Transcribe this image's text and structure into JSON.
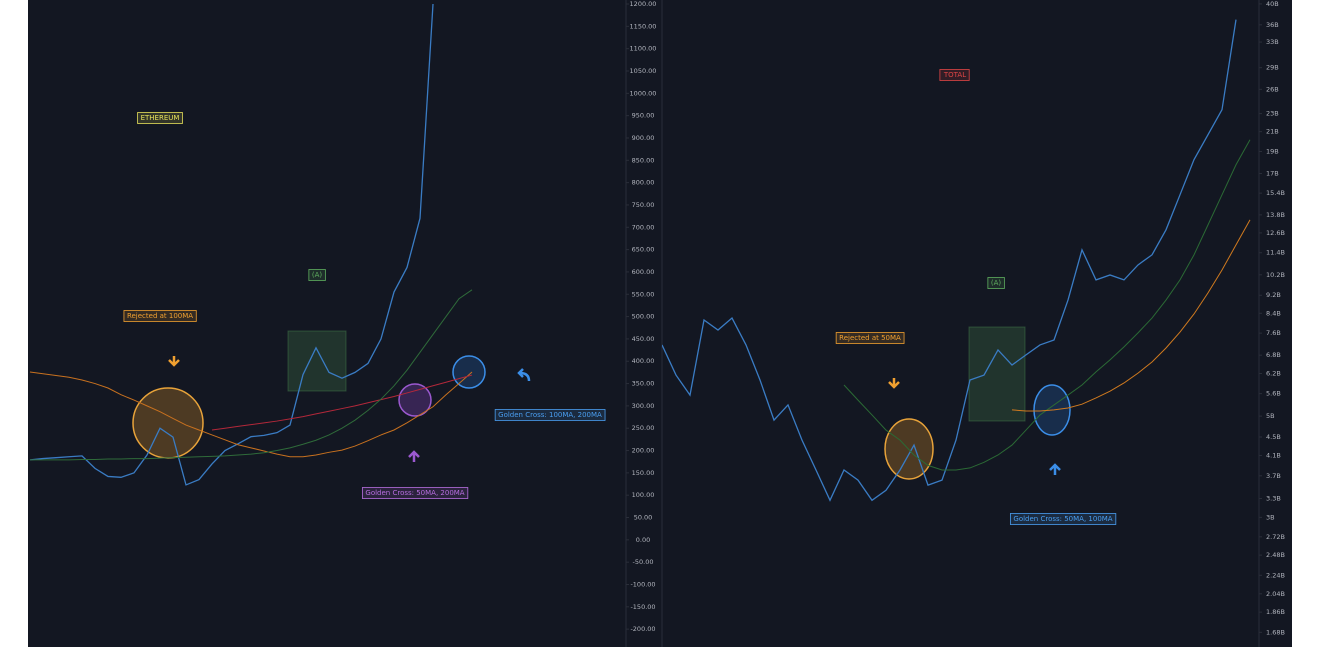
{
  "chart_data": [
    {
      "type": "line",
      "title": "ETHEREUM",
      "annotations": [
        "(A)",
        "Rejected at 100MA",
        "Golden Cross: 50MA, 200MA",
        "Golden Cross: 100MA, 200MA"
      ],
      "ylim": [
        -240,
        1209
      ],
      "yticks": [
        {
          "value": 1200,
          "label": "1200.00"
        },
        {
          "value": 1150,
          "label": "1150.00"
        },
        {
          "value": 1100,
          "label": "1100.00"
        },
        {
          "value": 1050,
          "label": "1050.00"
        },
        {
          "value": 1000,
          "label": "1000.00"
        },
        {
          "value": 950,
          "label": "950.00"
        },
        {
          "value": 900,
          "label": "900.00"
        },
        {
          "value": 850,
          "label": "850.00"
        },
        {
          "value": 800,
          "label": "800.00"
        },
        {
          "value": 750,
          "label": "750.00"
        },
        {
          "value": 700,
          "label": "700.00"
        },
        {
          "value": 650,
          "label": "650.00"
        },
        {
          "value": 600,
          "label": "600.00"
        },
        {
          "value": 550,
          "label": "550.00"
        },
        {
          "value": 500,
          "label": "500.00"
        },
        {
          "value": 450,
          "label": "450.00"
        },
        {
          "value": 400,
          "label": "400.00"
        },
        {
          "value": 350,
          "label": "350.00"
        },
        {
          "value": 300,
          "label": "300.00"
        },
        {
          "value": 250,
          "label": "250.00"
        },
        {
          "value": 200,
          "label": "200.00"
        },
        {
          "value": 150,
          "label": "150.00"
        },
        {
          "value": 100,
          "label": "100.00"
        },
        {
          "value": 50,
          "label": "50.00"
        },
        {
          "value": 0,
          "label": "0.00"
        },
        {
          "value": -50,
          "label": "-50.00"
        },
        {
          "value": -100,
          "label": "-100.00"
        },
        {
          "value": -150,
          "label": "-150.00"
        },
        {
          "value": -200,
          "label": "-200.00"
        }
      ],
      "log_scale": false,
      "grid": false,
      "series": [
        {
          "color": "#3a7cc4",
          "values": [
            179,
            182,
            184,
            186,
            188,
            160,
            142,
            140,
            150,
            190,
            250,
            230,
            123,
            135,
            170,
            200,
            215,
            231,
            234,
            240,
            257,
            370,
            430,
            375,
            362,
            375,
            395,
            450,
            555,
            610,
            720,
            1200,
            null,
            null,
            null
          ]
        },
        {
          "color": "#c8711f",
          "values": [
            376,
            372,
            368,
            364,
            358,
            350,
            340,
            325,
            313,
            300,
            287,
            272,
            257,
            246,
            235,
            224,
            213,
            206,
            199,
            192,
            186,
            186,
            190,
            196,
            201,
            210,
            222,
            235,
            246,
            262,
            280,
            298,
            325,
            350,
            376
          ]
        },
        {
          "color": "#b3283a",
          "values": [
            null,
            null,
            null,
            null,
            null,
            null,
            null,
            null,
            null,
            null,
            null,
            null,
            null,
            null,
            246,
            250,
            254,
            258,
            262,
            266,
            271,
            276,
            282,
            288,
            294,
            300,
            307,
            314,
            321,
            329,
            337,
            345,
            353,
            361,
            369
          ]
        },
        {
          "color": "#2f6b3a",
          "values": [
            179,
            179,
            179,
            179,
            180,
            180,
            181,
            181,
            182,
            182,
            183,
            184,
            185,
            186,
            187,
            188,
            190,
            192,
            195,
            200,
            206,
            214,
            223,
            235,
            250,
            268,
            290,
            315,
            345,
            380,
            420,
            460,
            500,
            540,
            560
          ]
        }
      ]
    },
    {
      "type": "line",
      "title": "TOTAL",
      "annotations": [
        "(A)",
        "Rejected at 50MA",
        "Golden Cross: 50MA, 100MA"
      ],
      "ylim": [
        1.56,
        40.8
      ],
      "yticks": [
        {
          "value": 40,
          "label": "40B"
        },
        {
          "value": 36,
          "label": "36B"
        },
        {
          "value": 33,
          "label": "33B"
        },
        {
          "value": 29,
          "label": "29B"
        },
        {
          "value": 26,
          "label": "26B"
        },
        {
          "value": 23,
          "label": "23B"
        },
        {
          "value": 21,
          "label": "21B"
        },
        {
          "value": 19,
          "label": "19B"
        },
        {
          "value": 17,
          "label": "17B"
        },
        {
          "value": 15.4,
          "label": "15.4B"
        },
        {
          "value": 13.8,
          "label": "13.8B"
        },
        {
          "value": 12.6,
          "label": "12.6B"
        },
        {
          "value": 11.4,
          "label": "11.4B"
        },
        {
          "value": 10.2,
          "label": "10.2B"
        },
        {
          "value": 9.2,
          "label": "9.2B"
        },
        {
          "value": 8.4,
          "label": "8.4B"
        },
        {
          "value": 7.6,
          "label": "7.6B"
        },
        {
          "value": 6.8,
          "label": "6.8B"
        },
        {
          "value": 6.2,
          "label": "6.2B"
        },
        {
          "value": 5.6,
          "label": "5.6B"
        },
        {
          "value": 5,
          "label": "5B"
        },
        {
          "value": 4.5,
          "label": "4.5B"
        },
        {
          "value": 4.1,
          "label": "4.1B"
        },
        {
          "value": 3.7,
          "label": "3.7B"
        },
        {
          "value": 3.3,
          "label": "3.3B"
        },
        {
          "value": 3,
          "label": "3B"
        },
        {
          "value": 2.72,
          "label": "2.72B"
        },
        {
          "value": 2.48,
          "label": "2.48B"
        },
        {
          "value": 2.24,
          "label": "2.24B"
        },
        {
          "value": 2.04,
          "label": "2.04B"
        },
        {
          "value": 1.86,
          "label": "1.86B"
        },
        {
          "value": 1.68,
          "label": "1.68B"
        }
      ],
      "log_scale": true,
      "grid": false,
      "series": [
        {
          "color": "#3a7cc4",
          "values": [
            7.16,
            6.15,
            5.56,
            8.12,
            7.72,
            8.2,
            7.16,
            6.0,
            4.9,
            5.29,
            4.43,
            3.81,
            3.27,
            3.81,
            3.62,
            3.27,
            3.44,
            3.81,
            4.32,
            3.53,
            3.62,
            4.43,
            6.0,
            6.15,
            6.98,
            6.47,
            6.81,
            7.16,
            7.34,
            8.98,
            11.57,
            9.94,
            10.19,
            9.94,
            10.72,
            11.28,
            12.8,
            15.27,
            18.23,
            20.68,
            23.46,
            36.96,
            null
          ]
        },
        {
          "color": "#2b6a35",
          "values": [
            null,
            null,
            null,
            null,
            null,
            null,
            null,
            null,
            null,
            null,
            null,
            null,
            null,
            5.85,
            5.42,
            5.03,
            4.66,
            4.43,
            4.11,
            3.9,
            3.81,
            3.81,
            3.85,
            3.96,
            4.11,
            4.32,
            4.66,
            5.03,
            5.29,
            5.56,
            5.85,
            6.25,
            6.64,
            7.09,
            7.61,
            8.2,
            8.98,
            9.94,
            11.28,
            13.12,
            15.27,
            17.77,
            20.16
          ]
        },
        {
          "color": "#d07a1f",
          "values": [
            null,
            null,
            null,
            null,
            null,
            null,
            null,
            null,
            null,
            null,
            null,
            null,
            null,
            null,
            null,
            null,
            null,
            null,
            null,
            null,
            null,
            null,
            null,
            null,
            null,
            5.16,
            5.13,
            5.13,
            5.16,
            5.21,
            5.31,
            5.48,
            5.67,
            5.91,
            6.21,
            6.57,
            7.05,
            7.64,
            8.37,
            9.31,
            10.45,
            11.86,
            13.46
          ]
        }
      ]
    }
  ]
}
